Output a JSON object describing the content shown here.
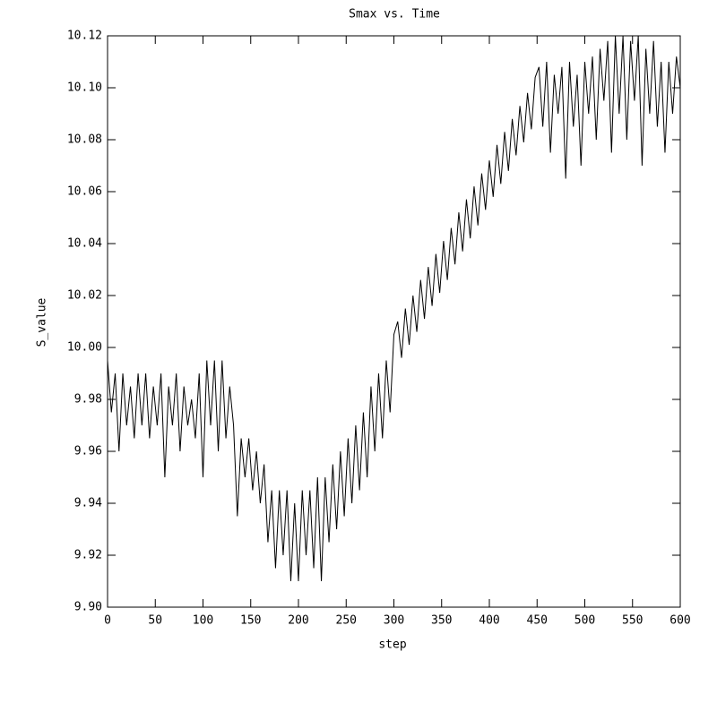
{
  "chart_data": {
    "type": "line",
    "title": "Smax vs. Time",
    "x_label": "step",
    "y_label": "S_value",
    "color": "#000000",
    "xlim": [
      0,
      600
    ],
    "ylim": [
      9.9,
      10.12
    ],
    "xticks": [
      0,
      50,
      100,
      150,
      200,
      250,
      300,
      350,
      400,
      450,
      500,
      550,
      600
    ],
    "yticks": [
      {
        "value": 9.9,
        "label": "9.90"
      },
      9.92,
      9.94,
      9.96,
      9.98,
      {
        "value": 10.0,
        "label": "10.00"
      },
      10.02,
      10.04,
      10.06,
      10.08,
      {
        "value": 10.1,
        "label": "10.10"
      },
      10.12
    ],
    "x": [
      0,
      4,
      8,
      12,
      16,
      20,
      24,
      28,
      32,
      36,
      40,
      44,
      48,
      52,
      56,
      60,
      64,
      68,
      72,
      76,
      80,
      84,
      88,
      92,
      96,
      100,
      104,
      108,
      112,
      116,
      120,
      124,
      128,
      132,
      136,
      140,
      144,
      148,
      152,
      156,
      160,
      164,
      168,
      172,
      176,
      180,
      184,
      188,
      192,
      196,
      200,
      204,
      208,
      212,
      216,
      220,
      224,
      228,
      232,
      236,
      240,
      244,
      248,
      252,
      256,
      260,
      264,
      268,
      272,
      276,
      280,
      284,
      288,
      292,
      296,
      300,
      304,
      308,
      312,
      316,
      320,
      324,
      328,
      332,
      336,
      340,
      344,
      348,
      352,
      356,
      360,
      364,
      368,
      372,
      376,
      380,
      384,
      388,
      392,
      396,
      400,
      404,
      408,
      412,
      416,
      420,
      424,
      428,
      432,
      436,
      440,
      444,
      448,
      452,
      456,
      460,
      464,
      468,
      472,
      476,
      480,
      484,
      488,
      492,
      496,
      500,
      504,
      508,
      512,
      516,
      520,
      524,
      528,
      532,
      536,
      540,
      544,
      548,
      552,
      556,
      560,
      564,
      568,
      572,
      576,
      580,
      584,
      588,
      592,
      596,
      600
    ],
    "values": [
      9.995,
      9.975,
      9.99,
      9.96,
      9.99,
      9.97,
      9.985,
      9.965,
      9.99,
      9.97,
      9.99,
      9.965,
      9.985,
      9.97,
      9.99,
      9.95,
      9.985,
      9.97,
      9.99,
      9.96,
      9.985,
      9.97,
      9.98,
      9.965,
      9.99,
      9.95,
      9.995,
      9.97,
      9.995,
      9.96,
      9.995,
      9.965,
      9.985,
      9.97,
      9.935,
      9.965,
      9.95,
      9.965,
      9.945,
      9.96,
      9.94,
      9.955,
      9.925,
      9.945,
      9.915,
      9.945,
      9.92,
      9.945,
      9.91,
      9.94,
      9.91,
      9.945,
      9.92,
      9.945,
      9.915,
      9.95,
      9.91,
      9.95,
      9.925,
      9.955,
      9.93,
      9.96,
      9.935,
      9.965,
      9.94,
      9.97,
      9.945,
      9.975,
      9.95,
      9.985,
      9.96,
      9.99,
      9.965,
      9.995,
      9.975,
      10.005,
      10.01,
      9.996,
      10.015,
      10.001,
      10.02,
      10.006,
      10.026,
      10.011,
      10.031,
      10.016,
      10.036,
      10.021,
      10.041,
      10.026,
      10.046,
      10.032,
      10.052,
      10.037,
      10.057,
      10.042,
      10.062,
      10.047,
      10.067,
      10.053,
      10.072,
      10.058,
      10.078,
      10.063,
      10.083,
      10.068,
      10.088,
      10.074,
      10.093,
      10.079,
      10.098,
      10.084,
      10.104,
      10.108,
      10.085,
      10.11,
      10.075,
      10.105,
      10.09,
      10.108,
      10.065,
      10.11,
      10.085,
      10.105,
      10.07,
      10.11,
      10.09,
      10.112,
      10.08,
      10.115,
      10.095,
      10.118,
      10.075,
      10.12,
      10.09,
      10.12,
      10.08,
      10.118,
      10.095,
      10.12,
      10.07,
      10.115,
      10.09,
      10.118,
      10.085,
      10.11,
      10.075,
      10.11,
      10.09,
      10.112,
      10.1
    ]
  }
}
